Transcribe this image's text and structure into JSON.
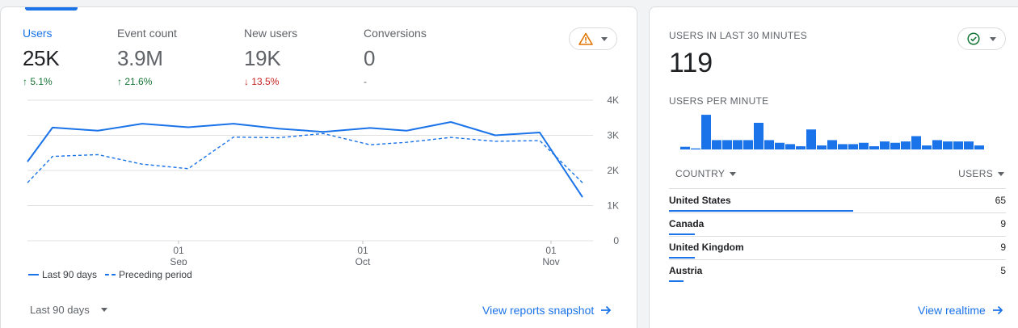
{
  "overview": {
    "metrics": [
      {
        "label": "Users",
        "value": "25K",
        "change": "5.1%",
        "direction": "up",
        "active": true
      },
      {
        "label": "Event count",
        "value": "3.9M",
        "change": "21.6%",
        "direction": "up",
        "active": false
      },
      {
        "label": "New users",
        "value": "19K",
        "change": "13.5%",
        "direction": "down",
        "active": false
      },
      {
        "label": "Conversions",
        "value": "0",
        "change": "-",
        "direction": "none",
        "active": false
      }
    ],
    "alert_icon": "warning-triangle-icon",
    "legend": {
      "current": "Last 90 days",
      "previous": "Preceding period"
    },
    "date_range": "Last 90 days",
    "link_label": "View reports snapshot"
  },
  "chart_data": {
    "type": "line",
    "x_ticks": [
      {
        "day": "01",
        "month": "Sep"
      },
      {
        "day": "01",
        "month": "Oct"
      },
      {
        "day": "01",
        "month": "Nov"
      }
    ],
    "y_ticks": [
      "4K",
      "3K",
      "2K",
      "1K",
      "0"
    ],
    "ylim": [
      0,
      4000
    ],
    "grid": true,
    "series": [
      {
        "name": "Last 90 days",
        "style": "solid",
        "values": [
          2250,
          3220,
          3130,
          3330,
          3230,
          3330,
          3190,
          3100,
          3210,
          3130,
          3380,
          3000,
          3080,
          1240
        ]
      },
      {
        "name": "Preceding period",
        "style": "dashed",
        "values": [
          1650,
          2400,
          2450,
          2180,
          2050,
          2950,
          2930,
          3050,
          2730,
          2800,
          2940,
          2830,
          2850,
          1650
        ]
      }
    ],
    "colors": {
      "line": "#1a73e8",
      "grid": "#e0e0e0"
    }
  },
  "realtime": {
    "heading": "USERS IN LAST 30 MINUTES",
    "value": "119",
    "per_minute_heading": "USERS PER MINUTE",
    "per_minute_values": [
      1,
      0.4,
      13,
      3.5,
      3.5,
      3.5,
      3.5,
      10,
      3.5,
      2.5,
      2,
      1.2,
      7.5,
      1.5,
      3.5,
      2,
      2,
      2.5,
      1.2,
      3,
      2.5,
      3,
      5,
      1.5,
      3.5,
      3,
      3,
      3,
      1.5,
      0.4
    ],
    "status_icon": "check-circle-icon",
    "table": {
      "col_country": "COUNTRY",
      "col_users": "USERS",
      "rows": [
        {
          "country": "United States",
          "users": "65",
          "share": 1.0
        },
        {
          "country": "Canada",
          "users": "9",
          "share": 0.14
        },
        {
          "country": "United Kingdom",
          "users": "9",
          "share": 0.14
        },
        {
          "country": "Austria",
          "users": "5",
          "share": 0.08
        }
      ]
    },
    "link_label": "View realtime"
  }
}
